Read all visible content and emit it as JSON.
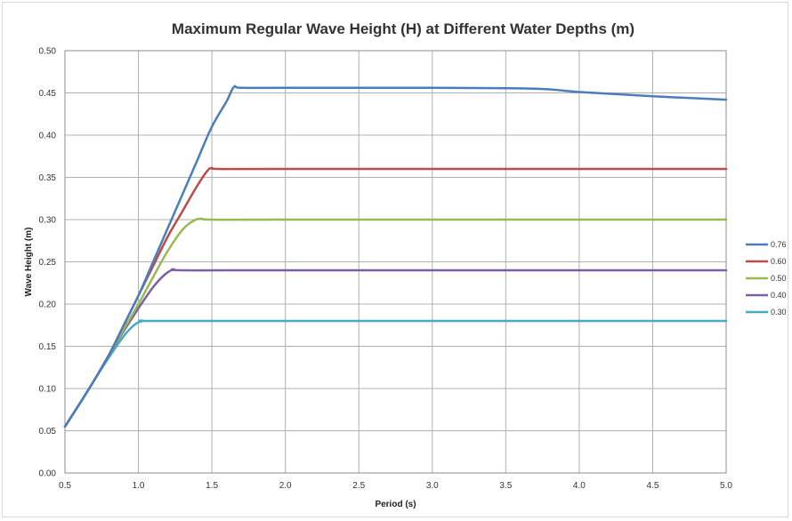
{
  "chart_data": {
    "type": "line",
    "title": "Maximum Regular Wave Height (H) at Different Water Depths (m)",
    "xlabel": "Period (s)",
    "ylabel": "Wave Height (m)",
    "xlim": [
      0.5,
      5.0
    ],
    "ylim": [
      0.0,
      0.5
    ],
    "grid": true,
    "legend_position": "right",
    "x_ticks": [
      "0.5",
      "1.0",
      "1.5",
      "2.0",
      "2.5",
      "3.0",
      "3.5",
      "4.0",
      "4.5",
      "5.0"
    ],
    "y_ticks": [
      "0.00",
      "0.05",
      "0.10",
      "0.15",
      "0.20",
      "0.25",
      "0.30",
      "0.35",
      "0.40",
      "0.45",
      "0.50"
    ],
    "series": [
      {
        "name": "0.76",
        "color": "#4a7ebb",
        "x": [
          0.5,
          0.6,
          0.7,
          0.8,
          0.9,
          1.0,
          1.1,
          1.2,
          1.3,
          1.4,
          1.5,
          1.6,
          1.65,
          1.7,
          2.0,
          3.0,
          3.7,
          4.0,
          4.5,
          5.0
        ],
        "y": [
          0.055,
          0.082,
          0.11,
          0.14,
          0.175,
          0.21,
          0.25,
          0.29,
          0.33,
          0.37,
          0.41,
          0.44,
          0.457,
          0.456,
          0.456,
          0.456,
          0.455,
          0.451,
          0.446,
          0.442
        ]
      },
      {
        "name": "0.60",
        "color": "#be4b48",
        "x": [
          0.5,
          0.6,
          0.7,
          0.8,
          0.9,
          1.0,
          1.1,
          1.2,
          1.3,
          1.4,
          1.47,
          1.5,
          1.55,
          2.0,
          5.0
        ],
        "y": [
          0.055,
          0.082,
          0.11,
          0.14,
          0.175,
          0.21,
          0.245,
          0.28,
          0.31,
          0.34,
          0.358,
          0.361,
          0.36,
          0.36,
          0.36
        ]
      },
      {
        "name": "0.50",
        "color": "#98b954",
        "x": [
          0.5,
          0.6,
          0.7,
          0.8,
          0.9,
          1.0,
          1.1,
          1.2,
          1.3,
          1.38,
          1.43,
          1.5,
          2.0,
          5.0
        ],
        "y": [
          0.055,
          0.082,
          0.11,
          0.14,
          0.17,
          0.2,
          0.232,
          0.263,
          0.288,
          0.299,
          0.301,
          0.3,
          0.3,
          0.3
        ]
      },
      {
        "name": "0.40",
        "color": "#7d60a0",
        "x": [
          0.5,
          0.6,
          0.7,
          0.8,
          0.9,
          1.0,
          1.1,
          1.18,
          1.24,
          1.3,
          2.0,
          5.0
        ],
        "y": [
          0.055,
          0.082,
          0.11,
          0.14,
          0.168,
          0.195,
          0.22,
          0.235,
          0.241,
          0.24,
          0.24,
          0.24
        ]
      },
      {
        "name": "0.30",
        "color": "#46aac5",
        "x": [
          0.5,
          0.6,
          0.7,
          0.8,
          0.9,
          0.97,
          1.03,
          1.1,
          2.0,
          5.0
        ],
        "y": [
          0.055,
          0.082,
          0.11,
          0.137,
          0.162,
          0.175,
          0.18,
          0.18,
          0.18,
          0.18
        ]
      }
    ]
  }
}
